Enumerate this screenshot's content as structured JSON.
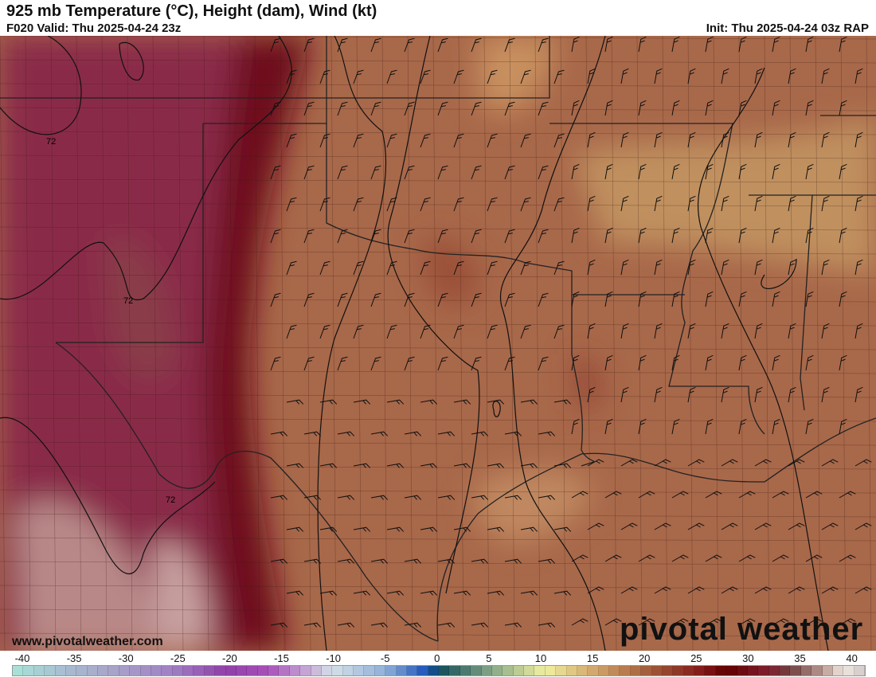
{
  "header": {
    "title": "925 mb Temperature (°C), Height (dam), Wind (kt)",
    "valid": "F020 Valid: Thu 2025-04-24 23z",
    "init": "Init: Thu 2025-04-24 03z RAP"
  },
  "watermark": "www.pivotalweather.com",
  "logo": "pivotal weather",
  "contour_labels": [
    "72",
    "72",
    "72"
  ],
  "colorbar": {
    "ticks": [
      "-40",
      "-35",
      "-30",
      "-25",
      "-20",
      "-15",
      "-10",
      "-5",
      "0",
      "5",
      "10",
      "15",
      "20",
      "25",
      "30",
      "35",
      "40"
    ],
    "stops": [
      {
        "v": -40,
        "c": "#a8e4d8"
      },
      {
        "v": -35,
        "c": "#a8bcd0"
      },
      {
        "v": -30,
        "c": "#a8a0c8"
      },
      {
        "v": -25,
        "c": "#a080c4"
      },
      {
        "v": -20,
        "c": "#9040a8"
      },
      {
        "v": -16,
        "c": "#a850b8"
      },
      {
        "v": -12,
        "c": "#c8b0d8"
      },
      {
        "v": -10,
        "c": "#d4e0e8"
      },
      {
        "v": -5,
        "c": "#90b0d8"
      },
      {
        "v": -1,
        "c": "#1850b8"
      },
      {
        "v": 0,
        "c": "#104c58"
      },
      {
        "v": 5,
        "c": "#88a888"
      },
      {
        "v": 10,
        "c": "#f0f0a0"
      },
      {
        "v": 15,
        "c": "#d0a068"
      },
      {
        "v": 20,
        "c": "#a05838"
      },
      {
        "v": 25,
        "c": "#801818"
      },
      {
        "v": 27,
        "c": "#600000"
      },
      {
        "v": 31,
        "c": "#802030"
      },
      {
        "v": 33,
        "c": "#704040"
      },
      {
        "v": 36,
        "c": "#b89890"
      },
      {
        "v": 38,
        "c": "#f0e8e0"
      },
      {
        "v": 40,
        "c": "#d0c8c8"
      }
    ]
  },
  "colors": {
    "land": "#a8684a",
    "west": "#7c1c2c",
    "far_west": "#8a2c4a",
    "light": "#c8a0a0",
    "gulf": "#b07050",
    "east_light": "#c89060"
  }
}
